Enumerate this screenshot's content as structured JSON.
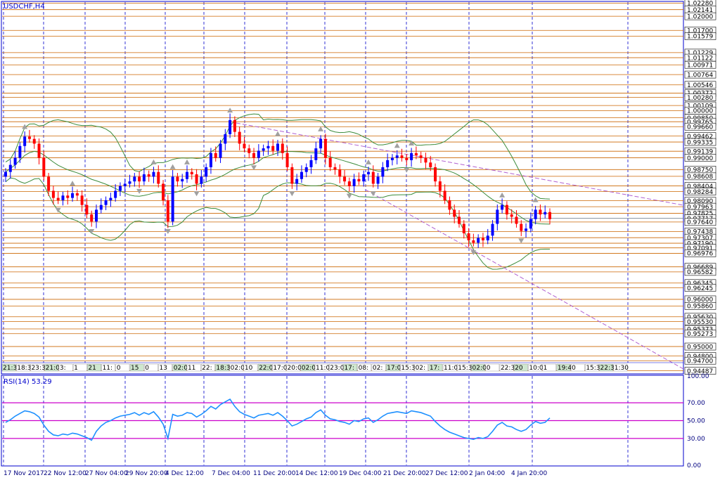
{
  "symbol": "USDCHF,H4",
  "rsi_label": "RSI(14) 53.29",
  "colors": {
    "bull": "#0000ff",
    "bear": "#ff0000",
    "level_line": "#cc6600",
    "grid": "#0000cc",
    "bollinger": "#3c8c3c",
    "trend": "#b060d0",
    "rsi_line": "#1e90ff",
    "rsi_levels": "#cc00cc"
  },
  "chart_data": [
    {
      "type": "candlestick",
      "title": "USDCHF,H4",
      "ylim": [
        0.9445,
        1.023
      ],
      "price_levels": [
        "1.02280",
        "1.02141",
        "1.02000",
        "1.01700",
        "1.01579",
        "1.01229",
        "1.01122",
        "1.00971",
        "1.00764",
        "1.00546",
        "1.00372",
        "1.00280",
        "1.00109",
        "1.00000",
        "0.99850",
        "0.99765",
        "0.99660",
        "0.99462",
        "0.99335",
        "0.99139",
        "0.99000",
        "0.98750",
        "0.98608",
        "0.98404",
        "0.98284",
        "0.98090",
        "0.97963",
        "0.97825",
        "0.97717",
        "0.97640",
        "0.97438",
        "0.97307",
        "0.97190",
        "0.97091",
        "0.96976",
        "0.96689",
        "0.96582",
        "0.96345",
        "0.96245",
        "0.96000",
        "0.95860",
        "0.95630",
        "0.95530",
        "0.95373",
        "0.95273",
        "0.95000",
        "0.94800",
        "0.94700",
        "0.94487"
      ],
      "highlighted_level": "0.97717",
      "x_labels": [
        "17 Nov 2017",
        "22 Nov 12:00",
        "27 Nov 04:00",
        "29 Nov 20:00",
        "4 Dec 12:00",
        "7 Dec 04:00",
        "11 Dec 20:00",
        "14 Dec 12:00",
        "19 Dec 04:00",
        "21 Dec 20:00",
        "27 Dec 12:00",
        "2 Jan 04:00",
        "4 Jan 20:00"
      ],
      "time_labels": [
        "21:3",
        "18:30",
        "23:35",
        "21:00",
        "3:",
        "1",
        "21",
        "11:",
        "0",
        "15",
        "0",
        "13",
        "02:00",
        "11",
        "22:",
        "18:30",
        "02:00",
        "10",
        "22:0",
        "17:00",
        "20:0",
        "02:00",
        "11:00",
        "23:0",
        "17:",
        "08:",
        "02:",
        "17:0",
        "15:30",
        "02:",
        "17:",
        "11:00",
        "15:30",
        "02:0",
        "0",
        "22:30",
        "20",
        "10:0",
        "1",
        "19:40",
        "0",
        "15:30",
        "22:30",
        "1:30"
      ],
      "series": [
        {
          "name": "USDCHF",
          "close": [
            0.987,
            0.9885,
            0.99,
            0.9925,
            0.9945,
            0.994,
            0.993,
            0.99,
            0.986,
            0.983,
            0.9815,
            0.981,
            0.982,
            0.9815,
            0.9825,
            0.982,
            0.98,
            0.978,
            0.9765,
            0.979,
            0.98,
            0.981,
            0.9815,
            0.983,
            0.984,
            0.9845,
            0.985,
            0.986,
            0.985,
            0.9865,
            0.986,
            0.987,
            0.9845,
            0.981,
            0.9765,
            0.986,
            0.985,
            0.9855,
            0.987,
            0.9865,
            0.9845,
            0.986,
            0.988,
            0.991,
            0.99,
            0.993,
            0.995,
            0.998,
            0.9955,
            0.993,
            0.992,
            0.991,
            0.99,
            0.9915,
            0.992,
            0.9925,
            0.9915,
            0.993,
            0.991,
            0.988,
            0.9845,
            0.9855,
            0.987,
            0.988,
            0.9895,
            0.992,
            0.994,
            0.99,
            0.988,
            0.9875,
            0.986,
            0.985,
            0.984,
            0.9855,
            0.985,
            0.9865,
            0.987,
            0.9845,
            0.986,
            0.988,
            0.9895,
            0.99,
            0.9905,
            0.99,
            0.9895,
            0.991,
            0.9905,
            0.99,
            0.989,
            0.988,
            0.985,
            0.983,
            0.981,
            0.979,
            0.9775,
            0.976,
            0.974,
            0.9725,
            0.972,
            0.973,
            0.9725,
            0.9735,
            0.976,
            0.979,
            0.98,
            0.978,
            0.9775,
            0.976,
            0.9745,
            0.975,
            0.977,
            0.979,
            0.978,
            0.9785,
            0.977
          ]
        }
      ]
    },
    {
      "type": "line",
      "title": "RSI(14) 53.29",
      "ylim": [
        0,
        100
      ],
      "y_ticks": [
        "100.00",
        "70.00",
        "50.00",
        "30.00",
        "0.00"
      ],
      "levels": [
        70,
        50,
        30
      ],
      "series": [
        {
          "name": "RSI(14)",
          "values": [
            48,
            51,
            55,
            58,
            61,
            60,
            58,
            54,
            45,
            38,
            34,
            33,
            35,
            34,
            36,
            35,
            33,
            31,
            28,
            38,
            44,
            48,
            50,
            53,
            55,
            56,
            57,
            59,
            56,
            59,
            57,
            60,
            54,
            46,
            30,
            57,
            55,
            56,
            59,
            58,
            54,
            57,
            61,
            66,
            63,
            68,
            71,
            74,
            66,
            60,
            57,
            55,
            53,
            56,
            57,
            58,
            56,
            59,
            55,
            50,
            44,
            46,
            49,
            52,
            54,
            59,
            62,
            56,
            52,
            51,
            49,
            48,
            46,
            50,
            49,
            52,
            53,
            48,
            51,
            55,
            58,
            59,
            60,
            59,
            58,
            61,
            60,
            59,
            57,
            55,
            49,
            44,
            40,
            37,
            35,
            33,
            31,
            30,
            29,
            31,
            30,
            32,
            38,
            45,
            48,
            44,
            43,
            40,
            38,
            40,
            45,
            49,
            47,
            48,
            53
          ]
        }
      ]
    }
  ]
}
